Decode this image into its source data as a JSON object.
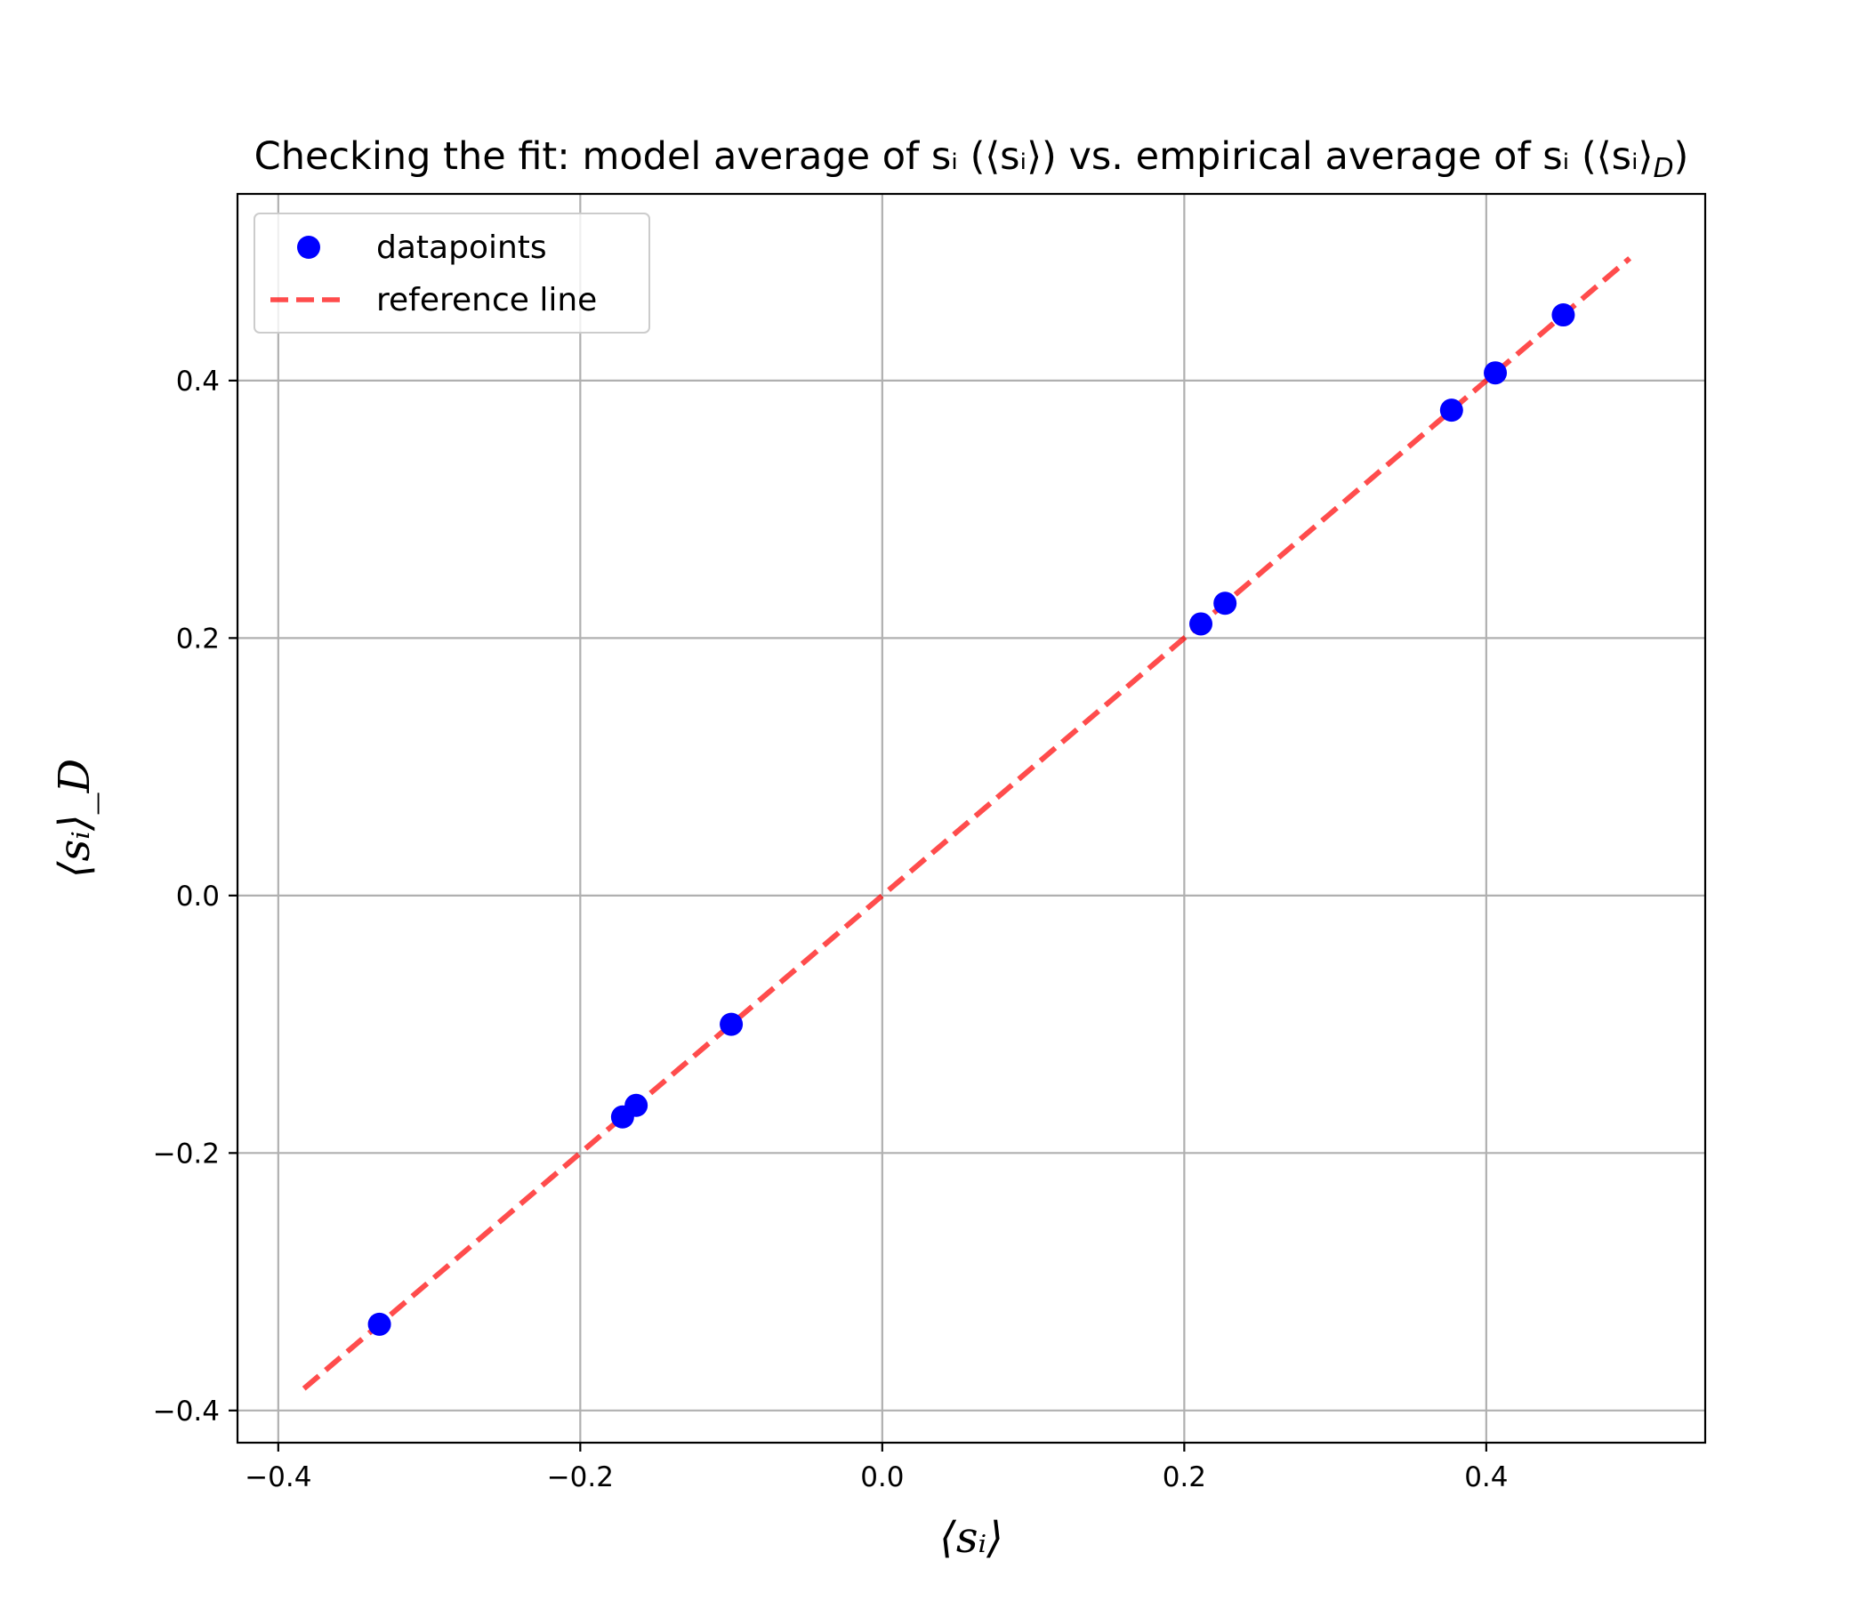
{
  "chart_data": {
    "type": "scatter",
    "title": "Checking the fit: model average of sᵢ (⟨sᵢ⟩) vs. empirical average of sᵢ (⟨sᵢ⟩_D)",
    "xlabel": "⟨sᵢ⟩",
    "ylabel": "⟨sᵢ⟩_D",
    "xlim": [
      -0.427,
      0.545
    ],
    "ylim": [
      -0.425,
      0.545
    ],
    "xticks": [
      -0.4,
      -0.2,
      0.0,
      0.2,
      0.4
    ],
    "yticks": [
      -0.4,
      -0.2,
      0.0,
      0.2,
      0.4
    ],
    "xtick_labels": [
      "−0.4",
      "−0.2",
      "0.0",
      "0.2",
      "0.4"
    ],
    "ytick_labels": [
      "−0.4",
      "−0.2",
      "0.0",
      "0.2",
      "0.4"
    ],
    "grid": true,
    "legend_position": "top-left",
    "series": [
      {
        "name": "datapoints",
        "kind": "scatter",
        "color": "#0000ff",
        "x": [
          -0.333,
          -0.172,
          -0.163,
          -0.1,
          0.211,
          0.227,
          0.377,
          0.406,
          0.451
        ],
        "y": [
          -0.333,
          -0.172,
          -0.163,
          -0.1,
          0.211,
          0.227,
          0.377,
          0.406,
          0.451
        ]
      },
      {
        "name": "reference line",
        "kind": "line",
        "style": "dashed",
        "color": "#ff0000",
        "opacity": 0.7,
        "x": [
          -0.383,
          0.495
        ],
        "y": [
          -0.383,
          0.495
        ]
      }
    ]
  }
}
